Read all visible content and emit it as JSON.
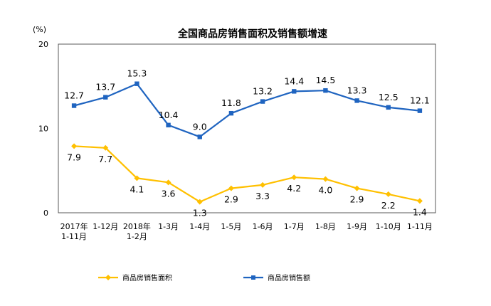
{
  "chart_data": {
    "type": "line",
    "title": "全国商品房销售面积及销售额增速",
    "unit_label": "(%)",
    "categories": [
      [
        "2017年",
        "1-11月"
      ],
      [
        "1-12月"
      ],
      [
        "2018年",
        "1-2月"
      ],
      [
        "1-3月"
      ],
      [
        "1-4月"
      ],
      [
        "1-5月"
      ],
      [
        "1-6月"
      ],
      [
        "1-7月"
      ],
      [
        "1-8月"
      ],
      [
        "1-9月"
      ],
      [
        "1-10月"
      ],
      [
        "1-11月"
      ]
    ],
    "ylim": [
      0,
      20
    ],
    "yticks": [
      "0",
      "10",
      "20"
    ],
    "series": [
      {
        "name": "商品房销售面积",
        "color": "#FFC000",
        "marker": "diamond",
        "values": [
          7.9,
          7.7,
          4.1,
          3.6,
          1.3,
          2.9,
          3.3,
          4.2,
          4.0,
          2.9,
          2.2,
          1.4
        ],
        "labels": [
          "7.9",
          "7.7",
          "4.1",
          "3.6",
          "1.3",
          "2.9",
          "3.3",
          "4.2",
          "4.0",
          "2.9",
          "2.2",
          "1.4"
        ]
      },
      {
        "name": "商品房销售额",
        "color": "#1F64C0",
        "marker": "square",
        "values": [
          12.7,
          13.7,
          15.3,
          10.4,
          9.0,
          11.8,
          13.2,
          14.4,
          14.5,
          13.3,
          12.5,
          12.1
        ],
        "labels": [
          "12.7",
          "13.7",
          "15.3",
          "10.4",
          "9.0",
          "11.8",
          "13.2",
          "14.4",
          "14.5",
          "13.3",
          "12.5",
          "12.1"
        ]
      }
    ],
    "grid": false,
    "legend_position": "bottom"
  }
}
